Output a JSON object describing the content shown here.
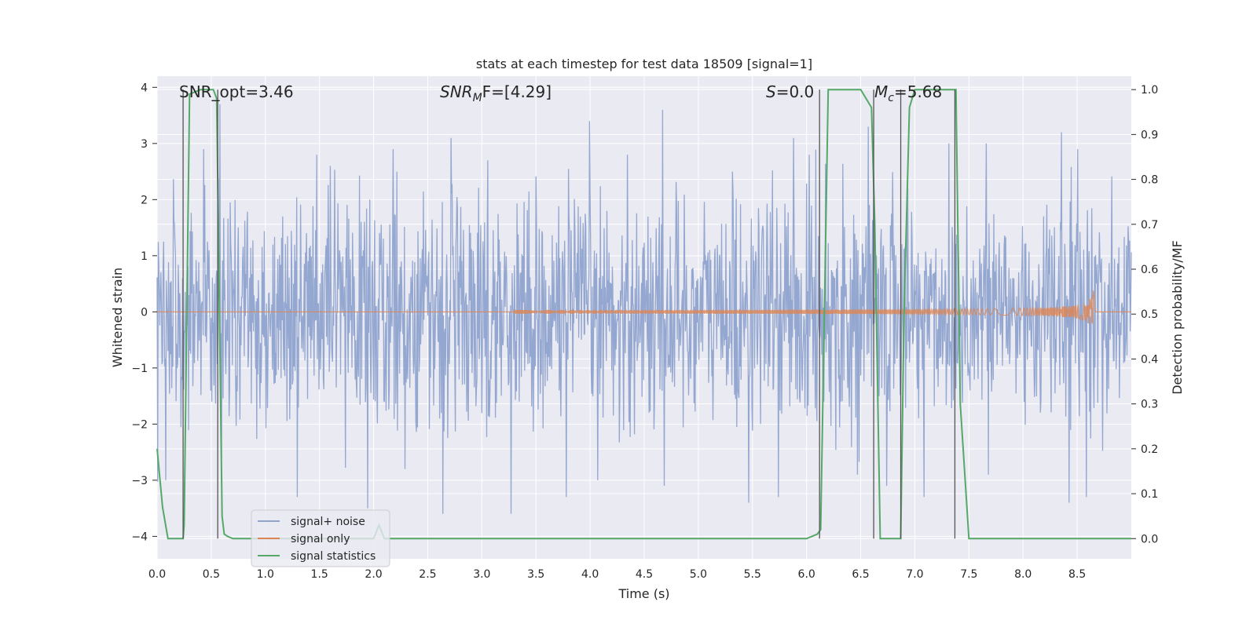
{
  "chart_data": {
    "type": "line",
    "title": "stats at each timestep for test data 18509 [signal=1]",
    "xlabel": "Time (s)",
    "ylabel_left": "Whitened strain",
    "ylabel_right": "Detection probability/MF",
    "xlim": [
      0.0,
      9.0
    ],
    "ylim_left": [
      -4.4,
      4.2
    ],
    "ylim_right": [
      -0.045,
      1.03
    ],
    "xticks": [
      "0.0",
      "0.5",
      "1.0",
      "1.5",
      "2.0",
      "2.5",
      "3.0",
      "3.5",
      "4.0",
      "4.5",
      "5.0",
      "5.5",
      "6.0",
      "6.5",
      "7.0",
      "7.5",
      "8.0",
      "8.5"
    ],
    "yticks_left": [
      "−4",
      "−3",
      "−2",
      "−1",
      "0",
      "1",
      "2",
      "3",
      "4"
    ],
    "yticks_right": [
      "0.0",
      "0.1",
      "0.2",
      "0.3",
      "0.4",
      "0.5",
      "0.6",
      "0.7",
      "0.8",
      "0.9",
      "1.0"
    ],
    "annotations": {
      "snr_opt": "SNR_opt=3.46",
      "snr_mf_name": "SNR",
      "snr_mf_sub": "M",
      "snr_mf_value": "F=[4.29]",
      "s_name": "S",
      "s_value": "=0.0",
      "mc_name": "M",
      "mc_sub": "c",
      "mc_value": "=5.68"
    },
    "legend": {
      "placement": "lower-left",
      "entries": [
        "signal+ noise",
        "signal only",
        "signal statistics"
      ]
    },
    "colors": {
      "noise": "#8fa3cd",
      "signal": "#dd8452",
      "stats": "#55a868",
      "vlines": "#555555",
      "background": "#eaeaf2",
      "grid": "#ffffff"
    },
    "series": [
      {
        "name": "signal+ noise",
        "description": "whitened noisy strain, roughly symmetric about 0 with peaks up to about 3.9 and troughs down to about -4.2",
        "sample_rate_per_s": 200,
        "envelope_max": [
          2.9,
          3.7,
          2.8,
          2.6,
          2.9,
          3.1,
          2.7,
          3.4,
          2.8,
          3.6,
          2.5,
          3.1,
          2.8,
          3.3,
          3.0,
          3.0,
          3.2,
          2.9
        ],
        "envelope_min": [
          -3.0,
          -2.6,
          -3.3,
          -3.5,
          -2.8,
          -3.6,
          -3.6,
          -3.3,
          -3.0,
          -3.1,
          -3.4,
          -3.3,
          -2.9,
          -3.1,
          -3.3,
          -2.9,
          -3.4,
          -3.3
        ]
      },
      {
        "name": "signal only",
        "description": "chirp signal growing in amplitude, ending at merger near t=8.65 s",
        "t_start": 3.3,
        "t_merger": 8.65,
        "amplitude_start": 0.02,
        "amplitude_peak": 0.4
      },
      {
        "name": "signal statistics",
        "axis": "right",
        "t": [
          0.0,
          0.05,
          0.1,
          0.24,
          0.25,
          0.3,
          0.4,
          0.52,
          0.55,
          0.6,
          0.62,
          0.65,
          0.7,
          0.85,
          0.9,
          1.5,
          2.0,
          2.05,
          2.1,
          2.2,
          2.5,
          6.0,
          6.1,
          6.13,
          6.2,
          6.5,
          6.6,
          6.63,
          6.68,
          6.7,
          6.8,
          6.87,
          6.9,
          6.95,
          7.0,
          7.3,
          7.38,
          7.42,
          7.5,
          8.5,
          9.0
        ],
        "values": [
          0.2,
          0.07,
          0.0,
          0.0,
          0.03,
          0.99,
          1.0,
          1.0,
          0.98,
          0.05,
          0.01,
          0.005,
          0.0,
          0.0,
          0.0,
          0.0,
          0.0,
          0.03,
          0.0,
          0.0,
          0.0,
          0.0,
          0.01,
          0.02,
          1.0,
          1.0,
          0.96,
          0.7,
          0.0,
          0.0,
          0.0,
          0.0,
          0.5,
          0.96,
          1.0,
          1.0,
          1.0,
          0.3,
          0.0,
          0.0,
          0.0
        ]
      }
    ],
    "vertical_lines_t": [
      0.24,
      0.56,
      6.12,
      6.62,
      6.87,
      7.37
    ]
  }
}
